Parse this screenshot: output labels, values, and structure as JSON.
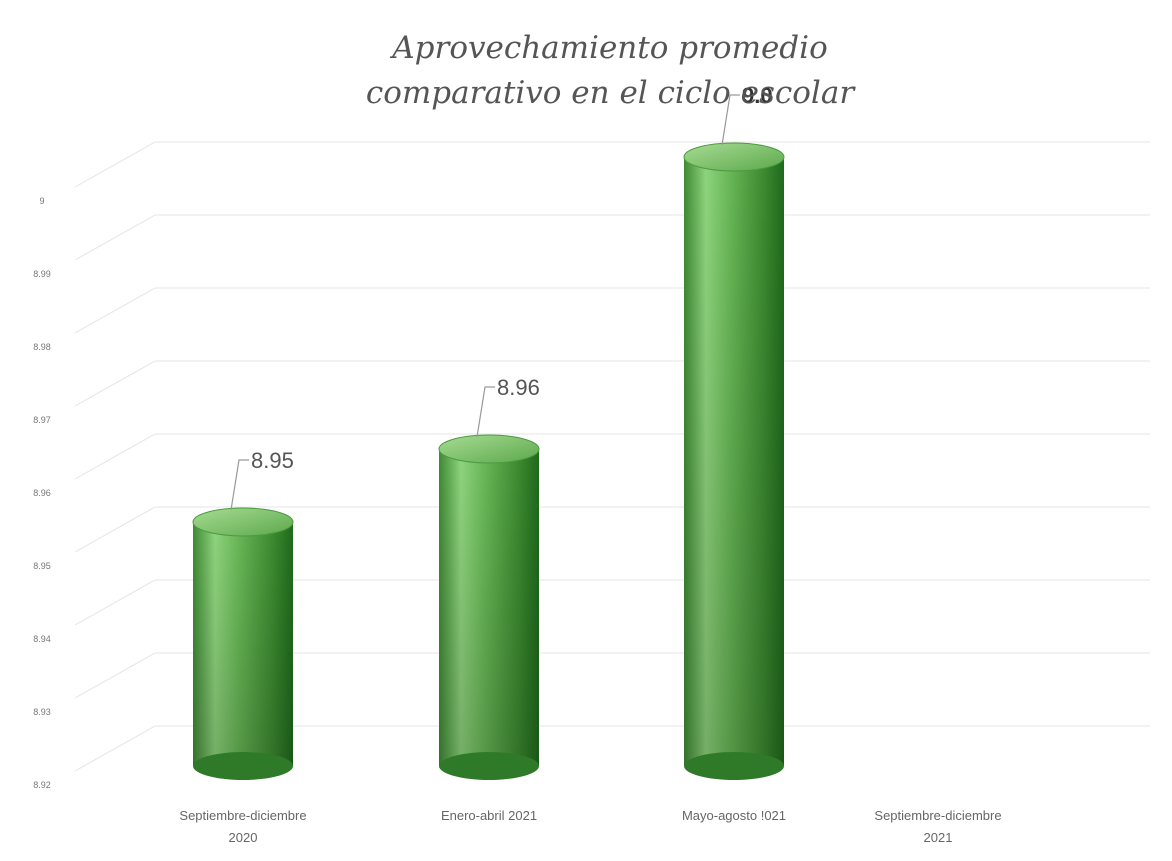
{
  "chart_data": {
    "type": "bar",
    "title_lines": [
      "Aprovechamiento promedio",
      "comparativo en el ciclo escolar"
    ],
    "categories": [
      [
        "Septiembre-diciembre",
        "2020"
      ],
      [
        "Enero-abril 2021"
      ],
      [
        "Mayo-agosto !021"
      ],
      [
        "Septiembre-diciembre",
        "2021"
      ]
    ],
    "values": [
      8.95,
      8.96,
      9.0,
      null
    ],
    "data_labels": [
      "8.95",
      "8.96",
      "9.0",
      ""
    ],
    "data_label_bold": [
      false,
      false,
      true,
      false
    ],
    "ylim": [
      8.92,
      9.0
    ],
    "yticks": [
      "8.92",
      "8.93",
      "8.94",
      "8.95",
      "8.96",
      "8.97",
      "8.98",
      "8.99",
      "9"
    ],
    "grid": true,
    "style": "3d-cylinder",
    "bar_color": "#4a9a3a",
    "bar_highlight": "#8fd47e",
    "bar_shadow": "#1f6a1c"
  }
}
